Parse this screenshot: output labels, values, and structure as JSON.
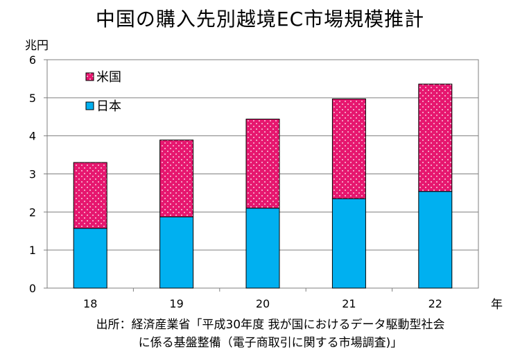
{
  "chart_data": {
    "type": "bar",
    "stacked": true,
    "title": "中国の購入先別越境EC市場規模推計",
    "xlabel": "年",
    "ylabel": "兆円",
    "ylim": [
      0,
      6
    ],
    "yticks": [
      "0",
      "1",
      "2",
      "3",
      "4",
      "5",
      "6"
    ],
    "categories": [
      "18",
      "19",
      "20",
      "21",
      "22"
    ],
    "series": [
      {
        "name": "日本",
        "color": "#00b0f0",
        "values": [
          1.57,
          1.87,
          2.1,
          2.35,
          2.54
        ]
      },
      {
        "name": "米国",
        "color": "#e6176f",
        "values": [
          1.73,
          2.02,
          2.34,
          2.62,
          2.82
        ]
      }
    ],
    "legend_position": "top-left",
    "grid": true
  },
  "source": {
    "line1": "出所：経済産業省「平成30年度 我が国におけるデータ駆動型社会",
    "line2": "に係る基盤整備（電子商取引に関する市場調査)」"
  }
}
